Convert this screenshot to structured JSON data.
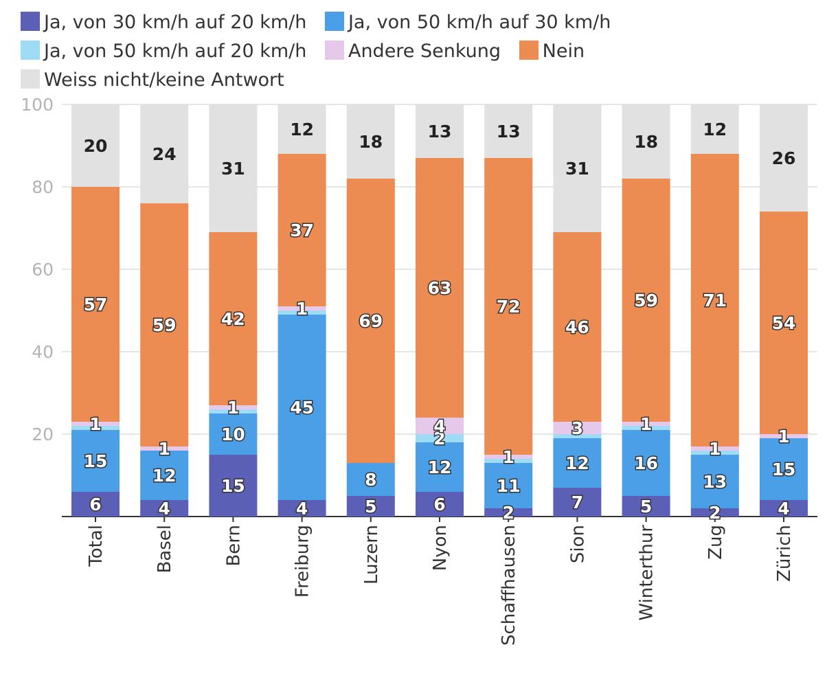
{
  "chart_data": {
    "type": "bar",
    "stacked": true,
    "title": "",
    "xlabel": "",
    "ylabel": "",
    "ylim": [
      0,
      100
    ],
    "yticks": [
      20,
      40,
      60,
      80,
      100
    ],
    "legend_position": "top",
    "categories": [
      "Total",
      "Basel",
      "Bern",
      "Freiburg",
      "Luzern",
      "Nyon",
      "Schaffhausen",
      "Sion",
      "Winterthur",
      "Zug",
      "Zürich"
    ],
    "series": [
      {
        "name": "Ja, von 30 km/h auf 20 km/h",
        "color": "#5b5fb5",
        "values": [
          6,
          4,
          15,
          4,
          5,
          6,
          2,
          7,
          5,
          2,
          4
        ]
      },
      {
        "name": "Ja, von 50 km/h auf 30 km/h",
        "color": "#4a9fe6",
        "values": [
          15,
          12,
          10,
          45,
          8,
          12,
          11,
          12,
          16,
          13,
          15
        ]
      },
      {
        "name": "Ja, von 50 km/h auf 20 km/h",
        "color": "#9edcf6",
        "values": [
          1,
          0,
          1,
          1,
          0,
          2,
          1,
          1,
          1,
          1,
          0
        ]
      },
      {
        "name": "Andere Senkung",
        "color": "#e6c8ea",
        "values": [
          1,
          1,
          1,
          1,
          0,
          4,
          1,
          3,
          1,
          1,
          1
        ]
      },
      {
        "name": "Nein",
        "color": "#ec8c52",
        "values": [
          57,
          59,
          42,
          37,
          69,
          63,
          72,
          46,
          59,
          71,
          54
        ]
      },
      {
        "name": "Weiss nicht/keine Antwort",
        "color": "#e1e1e1",
        "values": [
          20,
          24,
          31,
          12,
          18,
          13,
          13,
          31,
          18,
          12,
          26
        ]
      }
    ],
    "data_labels": [
      [
        {
          "value": 6
        },
        {
          "value": 15
        },
        {
          "value": 1
        },
        {
          "value": 57
        },
        {
          "value": 20
        }
      ]
    ]
  }
}
